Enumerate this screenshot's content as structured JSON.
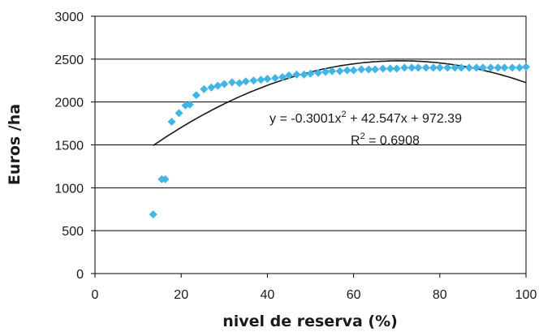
{
  "chart_data": {
    "type": "scatter",
    "title": "",
    "xlabel": "nivel de reserva (%)",
    "ylabel": "Euros /ha",
    "xlim": [
      0,
      100
    ],
    "ylim": [
      0,
      3000
    ],
    "x_ticks": [
      "0",
      "20",
      "40",
      "60",
      "80",
      "100"
    ],
    "y_ticks": [
      "0",
      "500",
      "1000",
      "1500",
      "2000",
      "2500",
      "3000"
    ],
    "grid": "horizontal",
    "legend": "none",
    "colors": {
      "points": "#41b6e6",
      "trend": "#1a1a1a",
      "grid": "#000000"
    },
    "series": [
      {
        "marker": "diamond",
        "x": [
          13.5,
          15.5,
          16.3,
          17.8,
          19.5,
          21,
          22,
          23.5,
          25.3,
          27,
          28.5,
          30,
          31.8,
          33.5,
          35,
          36.8,
          38.5,
          40,
          41.8,
          43.5,
          45,
          46.8,
          48.5,
          50,
          51.8,
          53.5,
          55,
          56.8,
          58.5,
          60,
          61.8,
          63.5,
          65,
          66.8,
          68.5,
          70,
          71.8,
          73.5,
          75,
          76.8,
          78.5,
          80,
          81.8,
          83.5,
          85,
          86.8,
          88.5,
          90,
          91.8,
          93.5,
          95,
          96.8,
          98.5,
          100
        ],
        "y": [
          690,
          1100,
          1100,
          1770,
          1870,
          1960,
          1970,
          2080,
          2150,
          2170,
          2190,
          2210,
          2230,
          2220,
          2240,
          2250,
          2260,
          2270,
          2280,
          2290,
          2310,
          2320,
          2320,
          2330,
          2340,
          2350,
          2360,
          2360,
          2370,
          2370,
          2380,
          2380,
          2380,
          2390,
          2390,
          2390,
          2400,
          2400,
          2400,
          2400,
          2400,
          2400,
          2400,
          2400,
          2400,
          2400,
          2400,
          2400,
          2400,
          2400,
          2400,
          2400,
          2400,
          2410
        ]
      }
    ],
    "trendline": {
      "type": "polynomial-2",
      "equation": "y = -0.3001x² + 42.547x + 972.39",
      "r2": "R² = 0.6908",
      "coefficients": {
        "a": -0.3001,
        "b": 42.547,
        "c": 972.39
      },
      "x_range": [
        13.5,
        100
      ]
    }
  }
}
